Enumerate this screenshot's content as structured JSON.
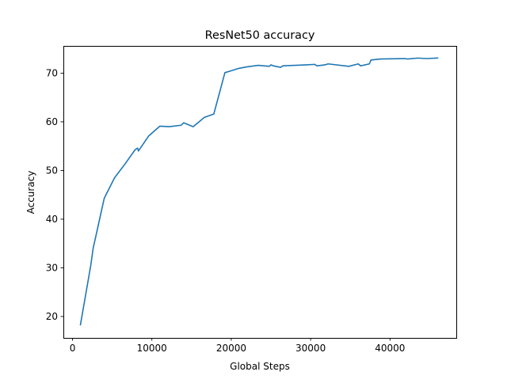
{
  "chart_data": {
    "type": "line",
    "title": "ResNet50 accuracy",
    "xlabel": "Global Steps",
    "ylabel": "Accuracy",
    "xlim": [
      -1150,
      48350
    ],
    "ylim": [
      15.6,
      75.6
    ],
    "xticks": [
      0,
      10000,
      20000,
      30000,
      40000
    ],
    "xtick_labels": [
      "0",
      "10000",
      "20000",
      "30000",
      "40000"
    ],
    "yticks": [
      20,
      30,
      40,
      50,
      60,
      70
    ],
    "ytick_labels": [
      "20",
      "30",
      "40",
      "50",
      "60",
      "70"
    ],
    "grid": false,
    "series": [
      {
        "color": "#1f77b4",
        "x": [
          1000,
          2300,
          2600,
          4000,
          5300,
          6600,
          7900,
          8200,
          8300,
          9600,
          11000,
          12200,
          13700,
          14000,
          15200,
          16600,
          17800,
          19200,
          20000,
          21000,
          22000,
          23400,
          24800,
          25000,
          25300,
          26200,
          26500,
          28000,
          29500,
          30500,
          30800,
          31800,
          32200,
          34800,
          36000,
          36300,
          37400,
          37600,
          38800,
          41900,
          42200,
          43500,
          44600,
          46000
        ],
        "y": [
          18.3,
          30.5,
          34,
          44.3,
          48.5,
          51.3,
          54.3,
          54.6,
          54.0,
          57.1,
          59.1,
          59.0,
          59.3,
          59.8,
          59.0,
          60.9,
          61.6,
          70.1,
          70.5,
          71.0,
          71.3,
          71.6,
          71.4,
          71.7,
          71.5,
          71.2,
          71.5,
          71.6,
          71.7,
          71.8,
          71.5,
          71.7,
          71.9,
          71.4,
          71.9,
          71.5,
          71.9,
          72.7,
          72.9,
          73.0,
          72.9,
          73.1,
          73.0,
          73.1
        ]
      }
    ]
  }
}
